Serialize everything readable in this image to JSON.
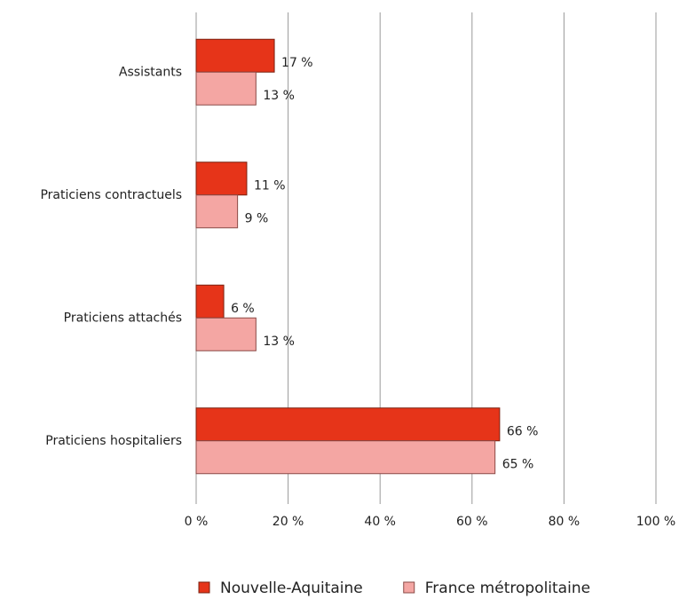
{
  "chart_data": {
    "type": "hbar",
    "categories": [
      "Assistants",
      "Praticiens contractuels",
      "Praticiens attachés",
      "Praticiens hospitaliers"
    ],
    "series": [
      {
        "name": "Nouvelle-Aquitaine",
        "color": "#e63419",
        "values": [
          17,
          11,
          6,
          66
        ],
        "value_labels": [
          "17 %",
          "11 %",
          "6 %",
          "66 %"
        ]
      },
      {
        "name": "France métropolitaine",
        "color": "#f4a6a3",
        "values": [
          13,
          9,
          13,
          65
        ],
        "value_labels": [
          "13 %",
          "9 %",
          "13 %",
          "65 %"
        ]
      }
    ],
    "xlim": [
      0,
      100
    ],
    "xticks": [
      {
        "value": 0,
        "label": "0 %"
      },
      {
        "value": 20,
        "label": "20 %"
      },
      {
        "value": 40,
        "label": "40 %"
      },
      {
        "value": 60,
        "label": "60 %"
      },
      {
        "value": 80,
        "label": "80 %"
      },
      {
        "value": 100,
        "label": "100 %"
      }
    ],
    "grid": true,
    "legend": "bottom"
  }
}
